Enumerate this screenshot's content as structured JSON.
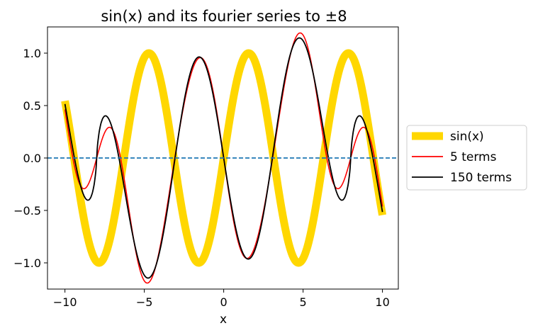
{
  "chart_data": {
    "type": "line",
    "title": "sin(x) and its fourier series to ±8",
    "xlabel": "x",
    "ylabel": "",
    "xlim": [
      -11.1,
      11.0
    ],
    "ylim": [
      -1.25,
      1.25
    ],
    "xticks": [
      -10,
      -5,
      0,
      5,
      10
    ],
    "xtick_labels": [
      "−10",
      "−5",
      "0",
      "5",
      "10"
    ],
    "yticks": [
      -1.0,
      -0.5,
      0.0,
      0.5,
      1.0
    ],
    "ytick_labels": [
      "−1.0",
      "−0.5",
      "0.0",
      "0.5",
      "1.0"
    ],
    "grid": false,
    "legend_position": "outside-right",
    "period_half_width": 8,
    "zero_line": {
      "y": 0,
      "color": "#1f77b4",
      "style": "dashed"
    },
    "series": [
      {
        "name": "sin(x)",
        "color": "#FFD700",
        "x_range": [
          -10,
          10
        ],
        "terms": 0
      },
      {
        "name": "5 terms",
        "color": "#ff0000",
        "x_range": [
          -10,
          10
        ],
        "terms": 5
      },
      {
        "name": "150 terms",
        "color": "#000000",
        "x_range": [
          -10,
          10
        ],
        "terms": 150
      }
    ]
  }
}
